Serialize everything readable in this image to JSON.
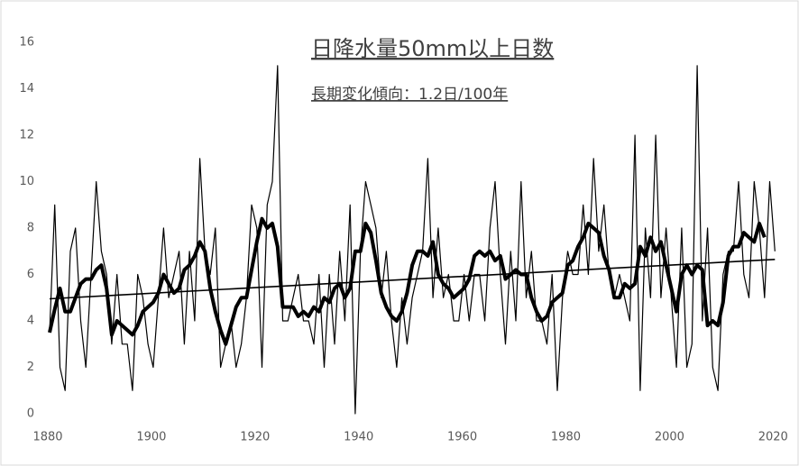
{
  "chart_data": {
    "type": "line",
    "title": "日降水量50mm以上日数",
    "subtitle": "長期変化傾向：1.2日/100年",
    "xlim": [
      1880,
      2021
    ],
    "xticks": [
      1880,
      1900,
      1920,
      1940,
      1960,
      1980,
      2000,
      2020
    ],
    "ylim": [
      0,
      16
    ],
    "yticks": [
      0,
      2,
      4,
      6,
      8,
      10,
      12,
      14,
      16
    ],
    "x": [
      1880,
      1881,
      1882,
      1883,
      1884,
      1885,
      1886,
      1887,
      1888,
      1889,
      1890,
      1891,
      1892,
      1893,
      1894,
      1895,
      1896,
      1897,
      1898,
      1899,
      1900,
      1901,
      1902,
      1903,
      1904,
      1905,
      1906,
      1907,
      1908,
      1909,
      1910,
      1911,
      1912,
      1913,
      1914,
      1915,
      1916,
      1917,
      1918,
      1919,
      1920,
      1921,
      1922,
      1923,
      1924,
      1925,
      1926,
      1927,
      1928,
      1929,
      1930,
      1931,
      1932,
      1933,
      1934,
      1935,
      1936,
      1937,
      1938,
      1939,
      1940,
      1941,
      1942,
      1943,
      1944,
      1945,
      1946,
      1947,
      1948,
      1949,
      1950,
      1951,
      1952,
      1953,
      1954,
      1955,
      1956,
      1957,
      1958,
      1959,
      1960,
      1961,
      1962,
      1963,
      1964,
      1965,
      1966,
      1967,
      1968,
      1969,
      1970,
      1971,
      1972,
      1973,
      1974,
      1975,
      1976,
      1977,
      1978,
      1979,
      1980,
      1981,
      1982,
      1983,
      1984,
      1985,
      1986,
      1987,
      1988,
      1989,
      1990,
      1991,
      1992,
      1993,
      1994,
      1995,
      1996,
      1997,
      1998,
      1999,
      2000,
      2001,
      2002,
      2003,
      2004,
      2005,
      2006,
      2007,
      2008,
      2009,
      2010,
      2011,
      2012,
      2013,
      2014,
      2015,
      2016,
      2017,
      2018,
      2019,
      2020
    ],
    "series": [
      {
        "color": "#000000",
        "width": 1.2,
        "values": [
          3.5,
          9,
          2,
          1,
          7,
          8,
          4,
          2,
          6,
          10,
          7,
          6,
          3,
          6,
          3,
          3,
          1,
          6,
          5,
          3,
          2,
          5,
          8,
          5,
          6,
          7,
          3,
          7,
          4,
          11,
          7,
          6,
          8,
          2,
          3,
          4,
          2,
          3,
          5,
          9,
          8,
          2,
          9,
          10,
          15,
          4,
          4,
          5,
          6,
          4,
          4,
          3,
          6,
          2,
          6,
          3,
          7,
          4,
          9,
          0,
          7,
          10,
          9,
          8,
          5,
          7,
          4,
          2,
          5,
          3,
          5,
          6,
          7,
          11,
          5,
          8,
          5,
          6,
          4,
          4,
          6,
          4,
          6,
          6,
          4,
          8,
          10,
          6,
          3,
          7,
          4,
          10,
          5,
          7,
          4,
          4,
          3,
          6,
          1,
          5,
          7,
          6,
          6,
          9,
          6,
          11,
          7,
          9,
          6,
          5,
          6,
          5,
          4,
          12,
          1,
          8,
          5,
          12,
          5,
          8,
          5,
          2,
          8,
          2,
          3,
          15,
          4,
          8,
          2,
          1,
          6,
          7,
          7,
          10,
          6,
          5,
          10,
          8,
          5,
          10,
          7
        ]
      },
      {
        "color": "#000000",
        "width": 4,
        "values": [
          3.5,
          4.5,
          5.4,
          4.4,
          4.4,
          5,
          5.6,
          5.8,
          5.8,
          6.2,
          6.4,
          5.4,
          3.4,
          4,
          3.8,
          3.6,
          3.4,
          3.8,
          4.4,
          4.6,
          4.8,
          5.2,
          6,
          5.6,
          5.2,
          5.4,
          6.2,
          6.4,
          6.8,
          7.4,
          7,
          5.4,
          4.4,
          3.6,
          3,
          3.8,
          4.6,
          5,
          5,
          6.2,
          7.4,
          8.4,
          8,
          8.2,
          7.2,
          4.6,
          4.6,
          4.6,
          4.2,
          4.4,
          4.2,
          4.6,
          4.4,
          5,
          4.8,
          5.4,
          5.6,
          5,
          5.4,
          7,
          7,
          8.2,
          7.8,
          6.6,
          5.2,
          4.6,
          4.2,
          4,
          4.4,
          5.2,
          6.4,
          7,
          7,
          6.8,
          7.4,
          6,
          5.6,
          5.4,
          5,
          5.2,
          5.4,
          5.8,
          6.8,
          7,
          6.8,
          7,
          6.6,
          6.8,
          5.8,
          6,
          6.2,
          6,
          6,
          5,
          4.4,
          4,
          4.2,
          4.8,
          5,
          5.2,
          6.4,
          6.6,
          7.2,
          7.6,
          8.2,
          8,
          7.8,
          6.8,
          6.2,
          5,
          5,
          5.6,
          5.4,
          5.6,
          7.2,
          6.8,
          7.6,
          7,
          7.4,
          6.4,
          5.4,
          4.4,
          6,
          6.4,
          6,
          6.4,
          6.2,
          3.8,
          4,
          3.8,
          4.8,
          6.8,
          7.2,
          7.2,
          7.8,
          7.6,
          7.4,
          8.2,
          7.6,
          null,
          null
        ]
      },
      {
        "color": "#000000",
        "width": 1.6,
        "x": [
          1880,
          2020
        ],
        "values": [
          4.95,
          6.65
        ]
      }
    ]
  }
}
